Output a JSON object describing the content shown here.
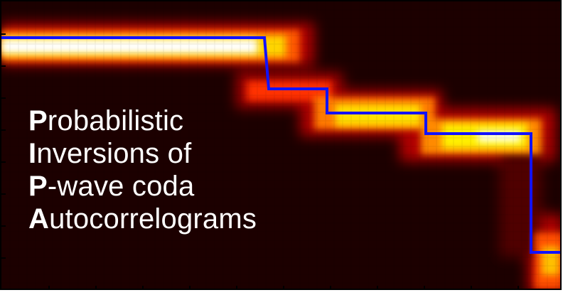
{
  "logo": {
    "lines": [
      {
        "initial": "P",
        "rest": "robabilistic"
      },
      {
        "initial": "I",
        "rest": "nversions of"
      },
      {
        "initial": "P",
        "rest": "-wave coda"
      },
      {
        "initial": "A",
        "rest": "utocorrelograms"
      }
    ]
  },
  "colors": {
    "background": "#1c0000",
    "profile_line": "#1212ff",
    "text": "#ffffff",
    "colormap": "hot"
  }
}
